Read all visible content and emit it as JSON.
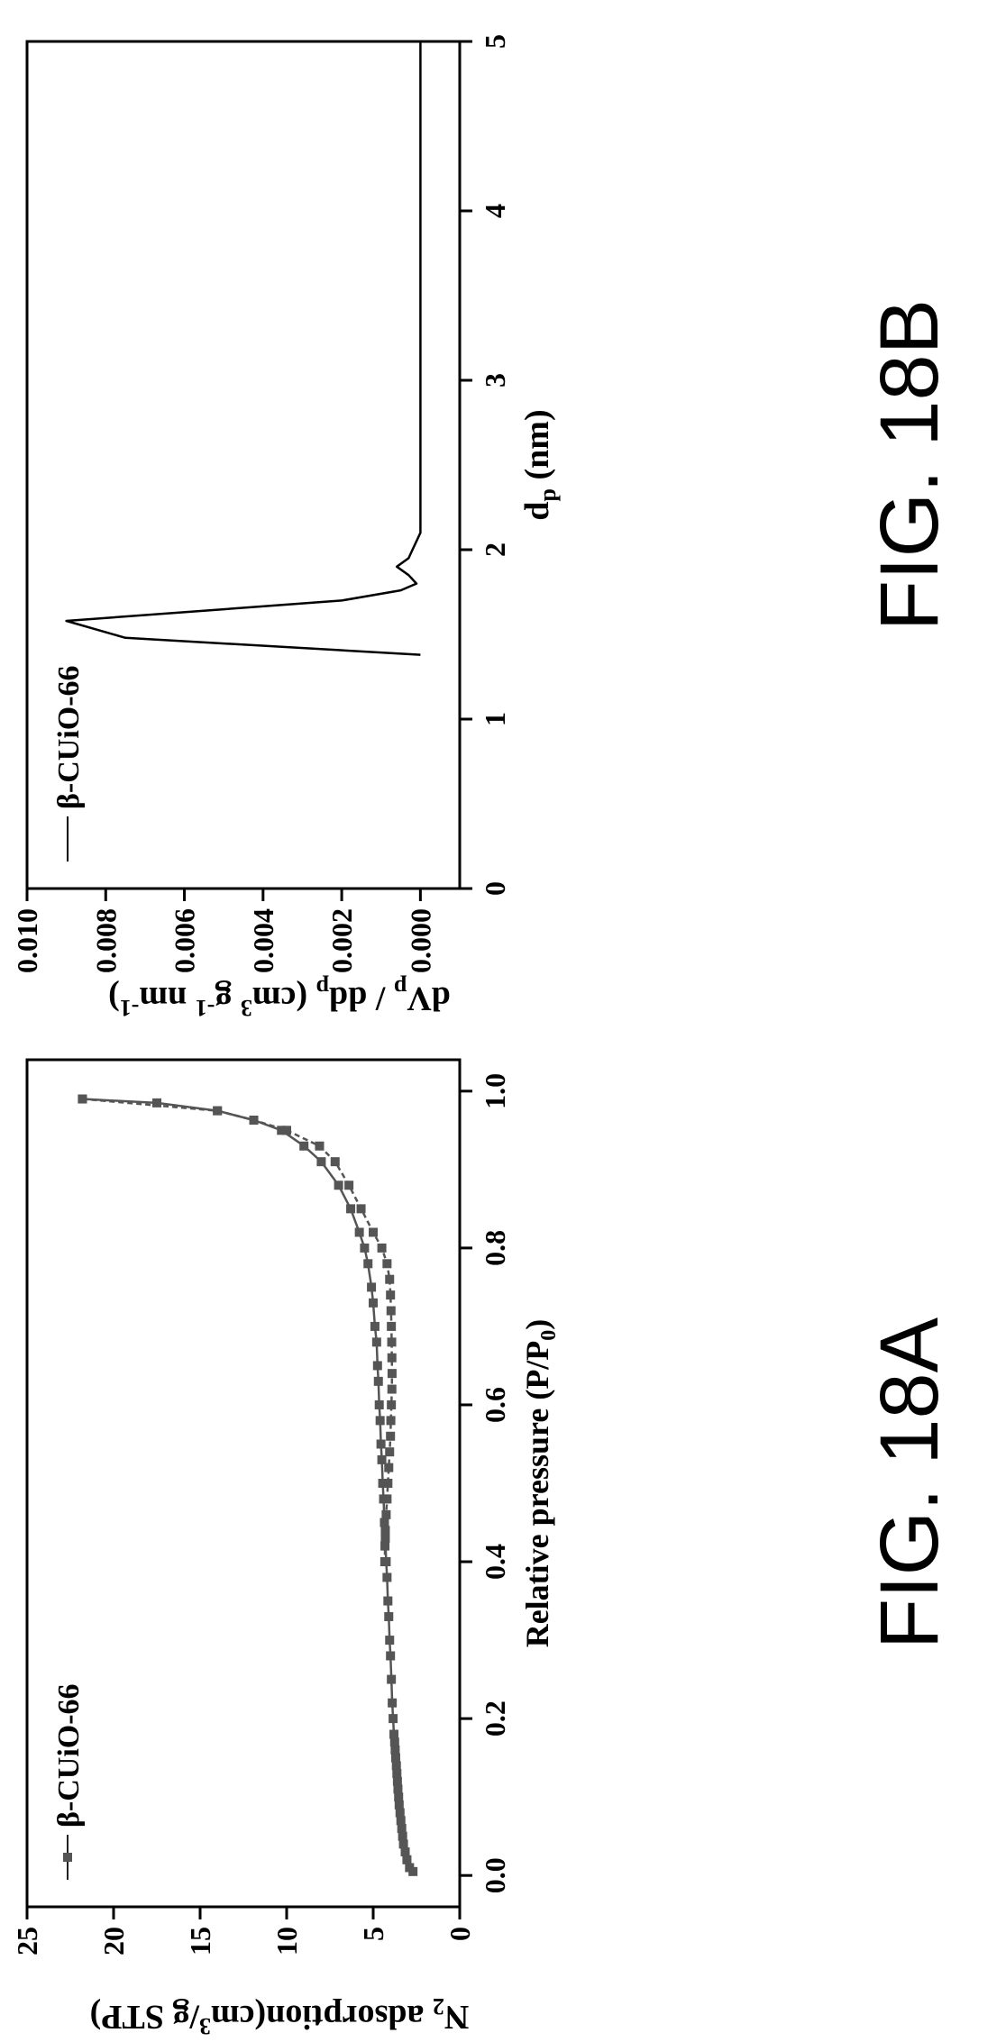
{
  "figures": [
    {
      "caption": "FIG. 18A",
      "chart_data": {
        "type": "line",
        "xlabel": "Relative pressure (P/P0)",
        "xlabel_main": "Relative pressure (P/P",
        "xlabel_sub": "0",
        "xlabel_end": ")",
        "ylabel": "N2 adsorption(cm3/g STP)",
        "ylabel_parts": [
          "N",
          "2",
          " adsorption(cm",
          "3",
          "/g STP)"
        ],
        "xlim": [
          -0.04,
          1.04
        ],
        "ylim": [
          0,
          25
        ],
        "xticks": [
          "0.0",
          "0.2",
          "0.4",
          "0.6",
          "0.8",
          "1.0"
        ],
        "yticks": [
          "0",
          "5",
          "10",
          "15",
          "20",
          "25"
        ],
        "legend": "top-left",
        "series": [
          {
            "name": "β-CUiO-66",
            "style": "solid line with square markers",
            "color": "#555555",
            "x": [
              0.005,
              0.01,
              0.02,
              0.03,
              0.04,
              0.05,
              0.06,
              0.07,
              0.08,
              0.09,
              0.1,
              0.11,
              0.12,
              0.13,
              0.14,
              0.15,
              0.16,
              0.17,
              0.18,
              0.2,
              0.22,
              0.25,
              0.28,
              0.3,
              0.33,
              0.35,
              0.38,
              0.4,
              0.43,
              0.45,
              0.48,
              0.5,
              0.53,
              0.55,
              0.58,
              0.6,
              0.63,
              0.65,
              0.68,
              0.7,
              0.73,
              0.75,
              0.78,
              0.8,
              0.82,
              0.85,
              0.88,
              0.91,
              0.93,
              0.95,
              0.963,
              0.975,
              0.985,
              0.99
            ],
            "y": [
              2.7,
              2.9,
              3.05,
              3.15,
              3.25,
              3.3,
              3.35,
              3.4,
              3.45,
              3.5,
              3.53,
              3.57,
              3.6,
              3.63,
              3.66,
              3.7,
              3.73,
              3.76,
              3.8,
              3.85,
              3.9,
              3.95,
              4.0,
              4.05,
              4.1,
              4.15,
              4.2,
              4.25,
              4.3,
              4.35,
              4.4,
              4.45,
              4.5,
              4.55,
              4.6,
              4.65,
              4.7,
              4.75,
              4.8,
              4.9,
              5.0,
              5.1,
              5.3,
              5.5,
              5.8,
              6.3,
              7.0,
              8.0,
              9.0,
              10.3,
              11.9,
              14.0,
              17.5,
              21.8
            ]
          },
          {
            "name": "",
            "style": "dashed line with square markers",
            "color": "#555555",
            "x": [
              0.99,
              0.975,
              0.963,
              0.95,
              0.93,
              0.91,
              0.88,
              0.85,
              0.82,
              0.8,
              0.78,
              0.76,
              0.74,
              0.72,
              0.7,
              0.68,
              0.66,
              0.64,
              0.62,
              0.6,
              0.58,
              0.56,
              0.54,
              0.52,
              0.5,
              0.48,
              0.46,
              0.44,
              0.42,
              0.4
            ],
            "y": [
              21.8,
              14.0,
              11.9,
              10.0,
              8.1,
              7.2,
              6.4,
              5.7,
              5.0,
              4.5,
              4.2,
              4.05,
              4.0,
              3.97,
              3.95,
              3.93,
              3.92,
              3.91,
              3.92,
              3.95,
              3.98,
              4.0,
              4.05,
              4.1,
              4.15,
              4.2,
              4.25,
              4.3,
              4.32,
              4.33
            ]
          }
        ]
      }
    },
    {
      "caption": "FIG. 18B",
      "chart_data": {
        "type": "line",
        "xlabel": "dp (nm)",
        "xlabel_main": "d",
        "xlabel_sub": "p",
        "xlabel_end": " (nm)",
        "ylabel": "dVp / ddp (cm3 g-1 nm-1)",
        "ylabel_parts": [
          "dV",
          "p",
          " / dd",
          "p",
          " (cm",
          "3",
          " g",
          "-1",
          " nm",
          "-1",
          ")"
        ],
        "xlim": [
          0,
          5
        ],
        "ylim": [
          -0.001,
          0.01
        ],
        "xticks": [
          "0",
          "1",
          "2",
          "3",
          "4",
          "5"
        ],
        "yticks": [
          "0.000",
          "0.002",
          "0.004",
          "0.006",
          "0.008",
          "0.010"
        ],
        "legend": "top-left",
        "series": [
          {
            "name": "β-CUiO-66",
            "style": "solid line",
            "color": "#000000",
            "x": [
              1.38,
              1.48,
              1.58,
              1.7,
              1.76,
              1.8,
              1.85,
              1.9,
              1.95,
              2.0,
              2.1,
              5.0
            ],
            "y": [
              0.0,
              0.0075,
              0.009,
              0.002,
              0.0005,
              0.0001,
              0.0003,
              0.0006,
              0.0003,
              0.0002,
              0.0,
              0.0
            ]
          }
        ]
      }
    }
  ]
}
